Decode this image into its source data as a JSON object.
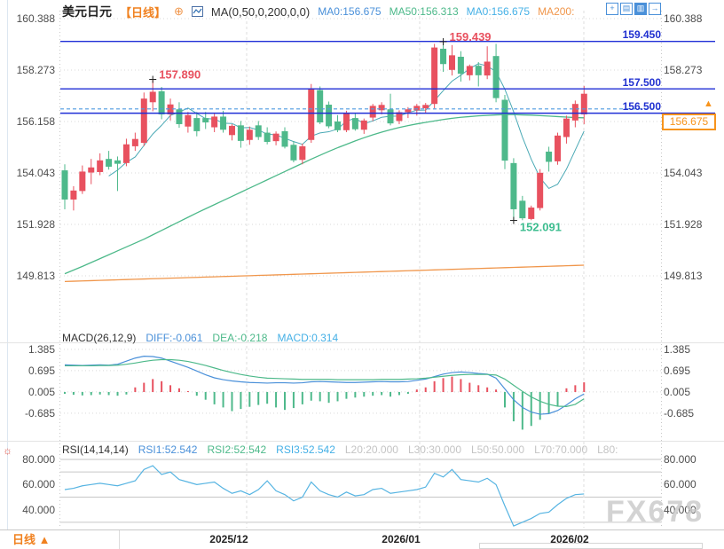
{
  "header": {
    "symbol": "美元日元",
    "period_tag": "【日线】",
    "plus_glyph": "⊕",
    "ma_settings": "MA(0,50,0,200,0,0)",
    "ma_items": [
      {
        "label": "MA0:156.675",
        "color": "#4a90d9"
      },
      {
        "label": "MA50:156.313",
        "color": "#4db98a"
      },
      {
        "label": "MA0:156.675",
        "color": "#45b0e6"
      },
      {
        "label": "MA200:",
        "color": "#f0964b"
      }
    ]
  },
  "toolbar": {
    "icons": [
      {
        "name": "pan-icon",
        "glyph": "+"
      },
      {
        "name": "axis-chart-icon",
        "glyph": "▤"
      },
      {
        "name": "bar-chart-icon",
        "glyph": "▥"
      },
      {
        "name": "exit-chart-icon",
        "glyph": "→"
      }
    ]
  },
  "macd": {
    "title": "MACD(26,12,9)",
    "diff_label": "DIFF:-0.061",
    "dea_label": "DEA:-0.218",
    "macd_label": "MACD:0.314"
  },
  "rsi": {
    "title": "RSI(14,14,14)",
    "items": [
      "RSI1:52.542",
      "RSI2:52.542",
      "RSI3:52.542"
    ],
    "levels": [
      "L20:20.000",
      "L30:30.000",
      "L50:50.000",
      "L70:70.000",
      "L80:"
    ]
  },
  "current_price": {
    "label": "156.675",
    "price": 156.675
  },
  "bottom": {
    "period": "日线 ▲",
    "dates": [
      "2025/12",
      "2026/01",
      "2026/02"
    ]
  },
  "watermark": {
    "text": "FX678"
  },
  "colors": {
    "up": "#e8515f",
    "down": "#4eb98b",
    "ma50": "#4db98a",
    "ma200": "#f0964b",
    "ma_short": "#4aa9b5",
    "line_solid": "#1f2ed6",
    "line_dashed": "#4f9ae0",
    "diff": "#4a90d9",
    "dea": "#4db98a",
    "rsi_line": "#56b4e2",
    "grid": "#d9d9d9",
    "grid_v": "#dedede",
    "rsi_levels": "#c6c6c6",
    "marker": "#222222"
  },
  "chart_data": {
    "type": "candlestick",
    "title": "USD/JPY daily candlestick with MA, MACD, RSI",
    "price_axis_ticks": [
      160.388,
      158.273,
      156.158,
      154.043,
      151.928,
      149.813
    ],
    "x_labels": [
      "2025/12",
      "2026/01",
      "2026/02"
    ],
    "price_lines": [
      {
        "label": "159.450",
        "price": 159.45
      },
      {
        "label": "157.500",
        "price": 157.5
      },
      {
        "label": "156.500",
        "price": 156.5
      }
    ],
    "annotations": [
      {
        "text": "157.890",
        "candle": 10,
        "at": "high",
        "color": "red"
      },
      {
        "text": "159.439",
        "candle": 43,
        "at": "high",
        "color": "red"
      },
      {
        "text": "152.091",
        "candle": 51,
        "at": "low",
        "color": "green"
      }
    ],
    "candles": [
      [
        154.15,
        154.4,
        152.55,
        152.95
      ],
      [
        152.95,
        153.5,
        152.5,
        153.32
      ],
      [
        153.3,
        154.35,
        153.18,
        154.1
      ],
      [
        154.06,
        154.62,
        153.58,
        154.27
      ],
      [
        154.08,
        154.85,
        153.95,
        154.56
      ],
      [
        154.62,
        154.95,
        154.18,
        154.3
      ],
      [
        154.56,
        154.72,
        153.3,
        154.42
      ],
      [
        154.45,
        155.45,
        154.32,
        155.22
      ],
      [
        155.14,
        155.7,
        154.95,
        155.44
      ],
      [
        155.28,
        157.35,
        155.15,
        157.1
      ],
      [
        156.95,
        157.89,
        156.58,
        157.38
      ],
      [
        157.4,
        157.58,
        156.25,
        156.45
      ],
      [
        156.45,
        157.1,
        156.2,
        156.86
      ],
      [
        156.66,
        156.95,
        155.9,
        156.05
      ],
      [
        155.95,
        156.55,
        155.7,
        156.42
      ],
      [
        156.3,
        156.55,
        155.55,
        155.76
      ],
      [
        156.3,
        156.55,
        155.85,
        156.12
      ],
      [
        155.92,
        156.48,
        155.72,
        156.36
      ],
      [
        156.36,
        156.6,
        155.7,
        155.82
      ],
      [
        155.6,
        156.05,
        155.38,
        155.98
      ],
      [
        156.0,
        156.18,
        155.08,
        155.36
      ],
      [
        155.4,
        155.95,
        155.2,
        155.82
      ],
      [
        156.0,
        156.18,
        155.4,
        155.52
      ],
      [
        155.7,
        155.92,
        155.22,
        155.32
      ],
      [
        155.35,
        155.75,
        155.18,
        155.66
      ],
      [
        155.76,
        155.92,
        155.05,
        155.12
      ],
      [
        155.2,
        155.35,
        154.48,
        154.56
      ],
      [
        154.58,
        155.25,
        154.4,
        155.14
      ],
      [
        155.4,
        157.7,
        155.28,
        157.52
      ],
      [
        157.45,
        157.6,
        156.05,
        156.12
      ],
      [
        156.85,
        156.98,
        155.88,
        155.96
      ],
      [
        156.16,
        156.42,
        155.72,
        155.8
      ],
      [
        155.8,
        156.6,
        155.72,
        156.5
      ],
      [
        156.3,
        156.48,
        155.78,
        155.84
      ],
      [
        155.82,
        156.28,
        155.65,
        156.2
      ],
      [
        156.32,
        156.88,
        156.18,
        156.8
      ],
      [
        156.62,
        156.95,
        156.45,
        156.84
      ],
      [
        156.66,
        157.3,
        156.0,
        156.08
      ],
      [
        156.18,
        156.62,
        156.05,
        156.54
      ],
      [
        156.54,
        156.75,
        156.3,
        156.66
      ],
      [
        156.62,
        156.88,
        156.4,
        156.8
      ],
      [
        156.7,
        156.92,
        156.52,
        156.84
      ],
      [
        156.88,
        159.35,
        156.7,
        159.2
      ],
      [
        159.15,
        159.439,
        158.2,
        158.52
      ],
      [
        158.28,
        159.3,
        158.05,
        158.88
      ],
      [
        158.82,
        159.05,
        157.8,
        158.12
      ],
      [
        158.06,
        158.5,
        157.85,
        158.44
      ],
      [
        158.45,
        158.6,
        157.6,
        158.06
      ],
      [
        158.05,
        159.25,
        157.9,
        158.62
      ],
      [
        158.85,
        159.35,
        156.95,
        157.12
      ],
      [
        157.05,
        157.25,
        154.2,
        154.55
      ],
      [
        154.45,
        154.65,
        152.091,
        152.55
      ],
      [
        152.9,
        153.1,
        152.1,
        152.18
      ],
      [
        152.15,
        152.7,
        152.1,
        152.62
      ],
      [
        152.6,
        154.2,
        152.5,
        154.05
      ],
      [
        154.92,
        155.12,
        154.1,
        154.5
      ],
      [
        154.52,
        155.7,
        154.38,
        155.58
      ],
      [
        155.52,
        156.4,
        155.25,
        156.28
      ],
      [
        156.2,
        157.02,
        155.92,
        156.88
      ],
      [
        156.45,
        157.62,
        156.05,
        157.3
      ]
    ],
    "ma50": [
      149.9,
      150.05,
      150.2,
      150.36,
      150.52,
      150.68,
      150.84,
      151.0,
      151.16,
      151.32,
      151.5,
      151.68,
      151.86,
      152.04,
      152.22,
      152.4,
      152.57,
      152.74,
      152.91,
      153.08,
      153.25,
      153.42,
      153.59,
      153.76,
      153.93,
      154.1,
      154.27,
      154.44,
      154.61,
      154.77,
      154.93,
      155.08,
      155.22,
      155.36,
      155.49,
      155.61,
      155.72,
      155.82,
      155.91,
      155.99,
      156.06,
      156.12,
      156.18,
      156.24,
      156.29,
      156.33,
      156.36,
      156.39,
      156.41,
      156.43,
      156.44,
      156.44,
      156.43,
      156.42,
      156.4,
      156.38,
      156.36,
      156.34,
      156.32,
      156.31
    ],
    "ma200": {
      "start": 149.58,
      "end": 150.25
    },
    "macd_panel": {
      "axis_ticks": [
        1.385,
        0.695,
        0.005,
        -0.685
      ],
      "diff": [
        0.88,
        0.87,
        0.86,
        0.87,
        0.88,
        0.87,
        0.9,
        1.0,
        1.1,
        1.16,
        1.15,
        1.1,
        1.0,
        0.9,
        0.8,
        0.68,
        0.56,
        0.46,
        0.4,
        0.36,
        0.33,
        0.31,
        0.3,
        0.29,
        0.3,
        0.3,
        0.29,
        0.3,
        0.33,
        0.34,
        0.33,
        0.32,
        0.31,
        0.31,
        0.32,
        0.33,
        0.34,
        0.33,
        0.33,
        0.34,
        0.38,
        0.42,
        0.5,
        0.58,
        0.63,
        0.65,
        0.63,
        0.6,
        0.58,
        0.45,
        0.1,
        -0.25,
        -0.5,
        -0.65,
        -0.72,
        -0.7,
        -0.6,
        -0.42,
        -0.22,
        -0.061
      ],
      "dea": [
        0.85,
        0.85,
        0.85,
        0.85,
        0.86,
        0.86,
        0.87,
        0.9,
        0.94,
        0.99,
        1.03,
        1.05,
        1.05,
        1.03,
        0.99,
        0.93,
        0.86,
        0.78,
        0.7,
        0.63,
        0.57,
        0.52,
        0.48,
        0.45,
        0.44,
        0.43,
        0.42,
        0.41,
        0.41,
        0.41,
        0.41,
        0.4,
        0.4,
        0.4,
        0.4,
        0.4,
        0.41,
        0.41,
        0.41,
        0.42,
        0.43,
        0.45,
        0.48,
        0.51,
        0.54,
        0.56,
        0.57,
        0.57,
        0.57,
        0.55,
        0.42,
        0.22,
        0.02,
        -0.16,
        -0.3,
        -0.4,
        -0.46,
        -0.47,
        -0.4,
        -0.218
      ],
      "hist": [
        -0.06,
        -0.09,
        -0.11,
        -0.1,
        -0.08,
        -0.1,
        -0.12,
        -0.08,
        0.15,
        0.3,
        0.42,
        0.35,
        0.22,
        0.12,
        0.03,
        -0.12,
        -0.25,
        -0.4,
        -0.5,
        -0.62,
        -0.55,
        -0.48,
        -0.42,
        -0.38,
        -0.5,
        -0.58,
        -0.52,
        -0.4,
        -0.28,
        -0.3,
        -0.35,
        -0.3,
        -0.22,
        -0.18,
        -0.15,
        -0.12,
        -0.1,
        -0.15,
        -0.1,
        -0.06,
        0.08,
        0.15,
        0.35,
        0.45,
        0.5,
        0.42,
        0.3,
        0.22,
        0.15,
        0.08,
        -0.5,
        -0.95,
        -1.22,
        -1.1,
        -0.9,
        -0.7,
        -0.45,
        0.12,
        0.22,
        0.314
      ]
    },
    "rsi_panel": {
      "axis_ticks": [
        80,
        60,
        40
      ],
      "level_lines": [
        80,
        70,
        50,
        30
      ],
      "values": [
        56,
        57,
        59,
        60,
        61,
        60,
        59,
        61,
        63,
        72,
        75,
        68,
        70,
        64,
        62,
        60,
        61,
        62,
        57,
        53,
        55,
        52,
        56,
        63,
        55,
        52,
        47,
        50,
        62,
        55,
        52,
        50,
        54,
        51,
        52,
        56,
        57,
        53,
        54,
        55,
        56,
        58,
        69,
        66,
        72,
        64,
        63,
        62,
        65,
        60,
        43,
        27,
        30,
        33,
        37,
        38,
        44,
        49,
        52,
        52.5
      ]
    }
  }
}
